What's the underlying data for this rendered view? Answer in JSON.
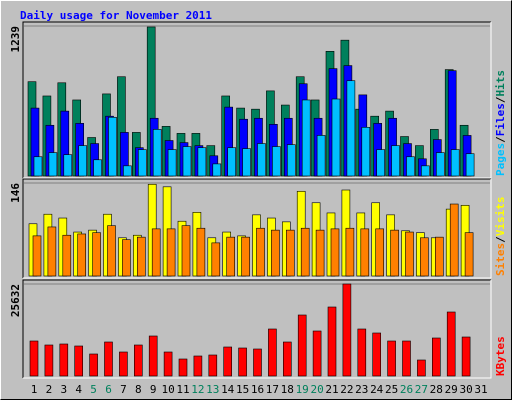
{
  "title": "Daily usage for November 2011",
  "title_color": "#0000ff",
  "legend_separator": "/",
  "chart_data": [
    {
      "type": "bar",
      "ylim": [
        0,
        1239
      ],
      "yticks": [
        1239
      ],
      "series": [
        {
          "name": "Hits",
          "color": "#00805c",
          "values": [
            779,
            661,
            770,
            628,
            318,
            678,
            820,
            360,
            1231,
            410,
            352,
            352,
            251,
            661,
            561,
            552,
            703,
            586,
            820,
            628,
            1030,
            1122,
            552,
            494,
            536,
            326,
            251,
            385,
            879,
            419,
            0
          ]
        },
        {
          "name": "Files",
          "color": "#0000ff",
          "values": [
            561,
            419,
            536,
            435,
            268,
            494,
            360,
            234,
            477,
            293,
            276,
            251,
            167,
            569,
            469,
            477,
            427,
            477,
            762,
            477,
            887,
            912,
            670,
            435,
            477,
            268,
            142,
            301,
            870,
            335,
            0
          ]
        },
        {
          "name": "Pages",
          "color": "#00c0ff",
          "values": [
            159,
            193,
            176,
            251,
            134,
            485,
            84,
            218,
            385,
            218,
            243,
            234,
            100,
            234,
            226,
            268,
            243,
            259,
            628,
            335,
            636,
            787,
            402,
            218,
            251,
            159,
            84,
            193,
            218,
            184,
            0
          ]
        }
      ]
    },
    {
      "type": "bar",
      "ylim": [
        0,
        146
      ],
      "yticks": [
        146
      ],
      "series": [
        {
          "name": "Visits",
          "color": "#ffff00",
          "values": [
            82,
            97,
            91,
            69,
            72,
            97,
            60,
            64,
            144,
            140,
            86,
            100,
            60,
            69,
            63,
            96,
            91,
            85,
            133,
            115,
            99,
            135,
            99,
            115,
            96,
            71,
            68,
            60,
            105,
            111,
            0
          ]
        },
        {
          "name": "Sites",
          "color": "#ff8000",
          "values": [
            63,
            77,
            64,
            66,
            68,
            79,
            57,
            61,
            74,
            74,
            79,
            75,
            52,
            61,
            61,
            75,
            72,
            72,
            75,
            72,
            74,
            75,
            74,
            74,
            72,
            69,
            60,
            61,
            113,
            68,
            0
          ]
        }
      ]
    },
    {
      "type": "bar",
      "ylim": [
        0,
        25632
      ],
      "yticks": [
        25632
      ],
      "categories": [
        "1",
        "2",
        "3",
        "4",
        "5",
        "6",
        "7",
        "8",
        "9",
        "10",
        "11",
        "12",
        "13",
        "14",
        "15",
        "16",
        "17",
        "18",
        "19",
        "20",
        "21",
        "22",
        "23",
        "24",
        "25",
        "26",
        "27",
        "28",
        "29",
        "30",
        "31"
      ],
      "category_colors": [
        "#000000",
        "#000000",
        "#000000",
        "#000000",
        "#00805c",
        "#00805c",
        "#000000",
        "#000000",
        "#000000",
        "#000000",
        "#000000",
        "#00805c",
        "#00805c",
        "#000000",
        "#000000",
        "#000000",
        "#000000",
        "#000000",
        "#00805c",
        "#00805c",
        "#000000",
        "#000000",
        "#000000",
        "#000000",
        "#000000",
        "#00805c",
        "#00805c",
        "#000000",
        "#000000",
        "#000000",
        "#000000"
      ],
      "series": [
        {
          "name": "KBytes",
          "color": "#ff0000",
          "values": [
            9751,
            8637,
            8915,
            8358,
            6129,
            9472,
            6686,
            8637,
            11144,
            6686,
            4736,
            5572,
            5851,
            8079,
            7801,
            7522,
            13094,
            9472,
            16995,
            12537,
            19223,
            25632,
            13094,
            11980,
            9751,
            9751,
            4458,
            10587,
            17830,
            10865,
            0
          ]
        }
      ]
    }
  ]
}
